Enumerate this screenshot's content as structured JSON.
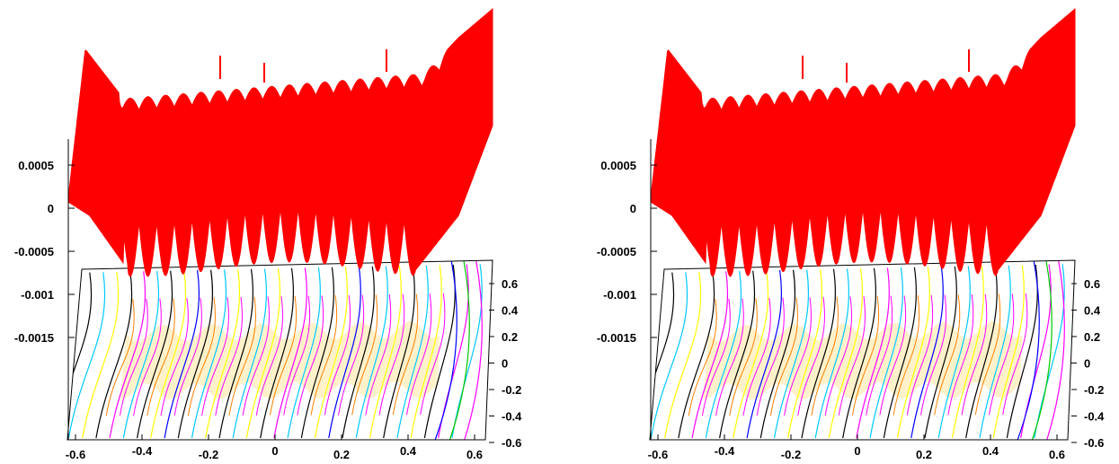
{
  "chart_data": [
    {
      "type": "surface3d",
      "title": "",
      "xlabel": "",
      "ylabel": "",
      "zlabel": "",
      "z_ticks": [
        "0.0005",
        "0",
        "-0.0005",
        "-0.001",
        "-0.0015"
      ],
      "z_tick_values": [
        0.0005,
        0,
        -0.0005,
        -0.001,
        -0.0015
      ],
      "zlim": [
        -0.0015,
        0.0005
      ],
      "x_ticks": [
        "-0.6",
        "-0.4",
        "-0.2",
        "0",
        "0.2",
        "0.4",
        "0.6"
      ],
      "x_tick_values": [
        -0.6,
        -0.4,
        -0.2,
        0,
        0.2,
        0.4,
        0.6
      ],
      "y_ticks": [
        "0.6",
        "0.4",
        "0.2",
        "0",
        "-0.2",
        "-0.4",
        "-0.6"
      ],
      "y_tick_values": [
        0.6,
        0.4,
        0.2,
        0,
        -0.2,
        -0.4,
        -0.6
      ],
      "surface_color": "#ff0000",
      "oscillation_count": 24,
      "contour_colors": [
        "#000000",
        "#00c8ff",
        "#ffff00",
        "#ff00ff",
        "#0000ff",
        "#00c800",
        "#ff8000",
        "#ff0000"
      ]
    },
    {
      "type": "surface3d",
      "title": "",
      "xlabel": "",
      "ylabel": "",
      "zlabel": "",
      "z_ticks": [
        "0.0005",
        "0",
        "-0.0005",
        "-0.001",
        "-0.0015"
      ],
      "z_tick_values": [
        0.0005,
        0,
        -0.0005,
        -0.001,
        -0.0015
      ],
      "zlim": [
        -0.0015,
        0.0005
      ],
      "x_ticks": [
        "-0.6",
        "-0.4",
        "-0.2",
        "0",
        "0.2",
        "0.4",
        "0.6"
      ],
      "x_tick_values": [
        -0.6,
        -0.4,
        -0.2,
        0,
        0.2,
        0.4,
        0.6
      ],
      "y_ticks": [
        "0.6",
        "0.4",
        "0.2",
        "0",
        "-0.2",
        "-0.4",
        "-0.6"
      ],
      "y_tick_values": [
        0.6,
        0.4,
        0.2,
        0,
        -0.2,
        -0.4,
        -0.6
      ],
      "surface_color": "#ff0000",
      "oscillation_count": 24,
      "contour_colors": [
        "#000000",
        "#00c8ff",
        "#ffff00",
        "#ff00ff",
        "#0000ff",
        "#00c800",
        "#ff8000",
        "#ff0000"
      ]
    }
  ]
}
